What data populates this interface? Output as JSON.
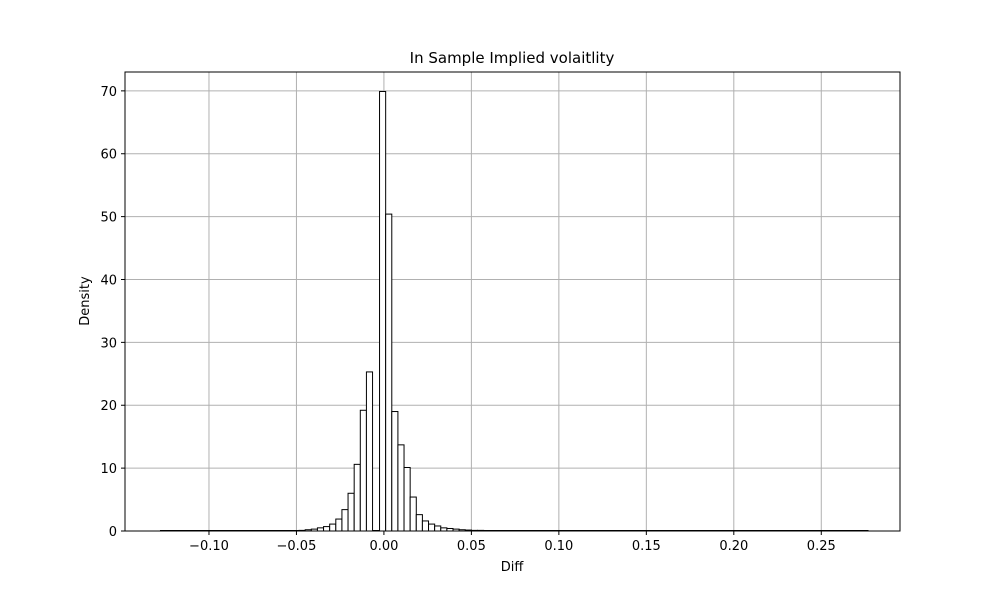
{
  "chart_data": {
    "type": "bar",
    "title": "In Sample Implied volaitlity",
    "xlabel": "Diff",
    "ylabel": "Density",
    "xlim": [
      -0.148,
      0.295
    ],
    "ylim": [
      0,
      73
    ],
    "grid": true,
    "x_ticks": [
      -0.1,
      -0.05,
      0.0,
      0.05,
      0.1,
      0.15,
      0.2,
      0.25
    ],
    "x_tick_labels": [
      "−0.10",
      "−0.05",
      "0.00",
      "0.05",
      "0.10",
      "0.15",
      "0.20",
      "0.25"
    ],
    "y_ticks": [
      0,
      10,
      20,
      30,
      40,
      50,
      60,
      70
    ],
    "y_tick_labels": [
      "0",
      "10",
      "20",
      "30",
      "40",
      "50",
      "60",
      "70"
    ],
    "bin_width": 0.0035,
    "bins": [
      {
        "x0": -0.0485,
        "density": 0.1
      },
      {
        "x0": -0.045,
        "density": 0.2
      },
      {
        "x0": -0.0415,
        "density": 0.3
      },
      {
        "x0": -0.038,
        "density": 0.5
      },
      {
        "x0": -0.0345,
        "density": 0.7
      },
      {
        "x0": -0.031,
        "density": 1.1
      },
      {
        "x0": -0.0275,
        "density": 1.9
      },
      {
        "x0": -0.024,
        "density": 3.4
      },
      {
        "x0": -0.0205,
        "density": 6.0
      },
      {
        "x0": -0.017,
        "density": 10.6
      },
      {
        "x0": -0.0135,
        "density": 19.2
      },
      {
        "x0": -0.01,
        "density": 25.3
      },
      {
        "x0": -0.0025,
        "density": 69.9
      },
      {
        "x0": 0.001,
        "density": 50.4
      },
      {
        "x0": 0.0045,
        "density": 19.0
      },
      {
        "x0": 0.008,
        "density": 13.7
      },
      {
        "x0": 0.0115,
        "density": 10.1
      },
      {
        "x0": 0.015,
        "density": 5.4
      },
      {
        "x0": 0.0185,
        "density": 2.6
      },
      {
        "x0": 0.022,
        "density": 1.6
      },
      {
        "x0": 0.0255,
        "density": 1.1
      },
      {
        "x0": 0.029,
        "density": 0.8
      },
      {
        "x0": 0.0325,
        "density": 0.5
      },
      {
        "x0": 0.036,
        "density": 0.4
      },
      {
        "x0": 0.0395,
        "density": 0.3
      },
      {
        "x0": 0.043,
        "density": 0.2
      },
      {
        "x0": 0.0465,
        "density": 0.15
      },
      {
        "x0": 0.05,
        "density": 0.1
      },
      {
        "x0": 0.0535,
        "density": 0.1
      }
    ],
    "baseline_range": [
      -0.128,
      0.277
    ],
    "bar_fill": "#ffffff",
    "bar_edge": "#000000",
    "grid_color": "#b0b0b0"
  }
}
